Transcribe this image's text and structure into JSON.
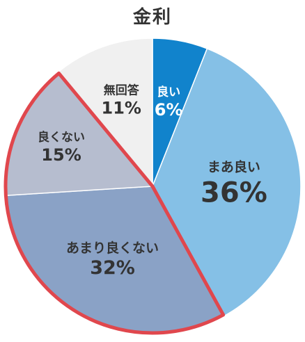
{
  "chart_data": {
    "type": "pie",
    "title": "金利",
    "slices": [
      {
        "label": "良い",
        "value": 6,
        "display": "6%",
        "color": "#1183cc",
        "text_color": "#ffffff"
      },
      {
        "label": "まあ良い",
        "value": 36,
        "display": "36%",
        "color": "#85c0e6",
        "text_color": "#333333"
      },
      {
        "label": "あまり良くない",
        "value": 32,
        "display": "32%",
        "color": "#8aa2c6",
        "text_color": "#333333"
      },
      {
        "label": "良くない",
        "value": 15,
        "display": "15%",
        "color": "#b6bdcf",
        "text_color": "#333333"
      },
      {
        "label": "無回答",
        "value": 11,
        "display": "11%",
        "color": "#f0f0f0",
        "text_color": "#333333"
      }
    ],
    "highlight": {
      "slices": [
        "あまり良くない",
        "良くない"
      ],
      "color": "#e0474d"
    }
  }
}
